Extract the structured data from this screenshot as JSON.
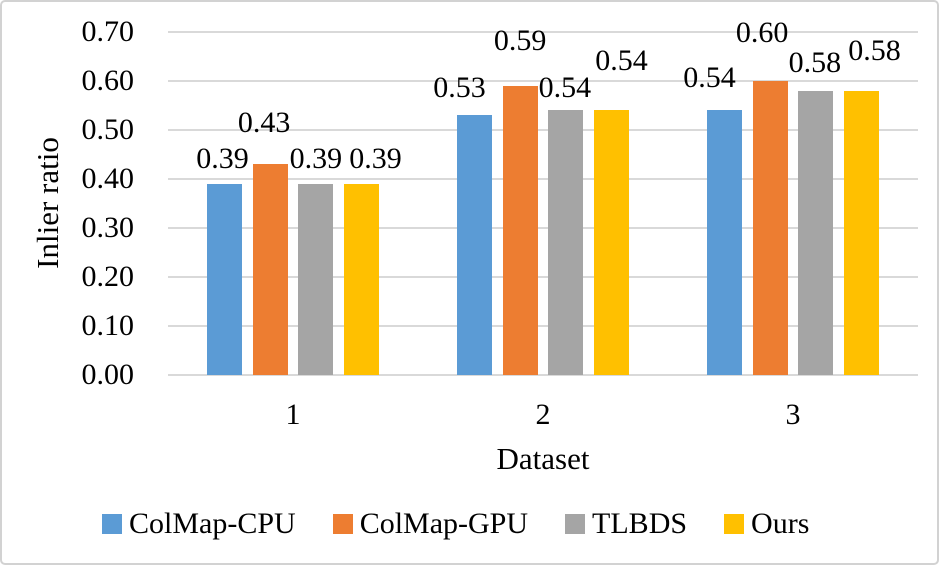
{
  "chart_data": {
    "type": "bar",
    "title": "",
    "xlabel": "Dataset",
    "ylabel": "Inlier ratio",
    "categories": [
      "1",
      "2",
      "3"
    ],
    "series": [
      {
        "name": "ColMap-CPU",
        "color": "#5B9BD5",
        "values": [
          0.39,
          0.53,
          0.54
        ]
      },
      {
        "name": "ColMap-GPU",
        "color": "#ED7D31",
        "values": [
          0.43,
          0.59,
          0.6
        ]
      },
      {
        "name": "TLBDS",
        "color": "#A5A5A5",
        "values": [
          0.39,
          0.54,
          0.58
        ]
      },
      {
        "name": "Ours",
        "color": "#FFC000",
        "values": [
          0.39,
          0.54,
          0.58
        ]
      }
    ],
    "data_labels": [
      [
        "0.39",
        "0.53",
        "0.54"
      ],
      [
        "0.43",
        "0.59",
        "0.60"
      ],
      [
        "0.39",
        "0.54",
        "0.58"
      ],
      [
        "0.39",
        "0.54",
        "0.58"
      ]
    ],
    "ylim": [
      0.0,
      0.7
    ],
    "ytick_step": 0.1,
    "yticks": [
      "0.00",
      "0.10",
      "0.20",
      "0.30",
      "0.40",
      "0.50",
      "0.60",
      "0.70"
    ],
    "grid": "horizontal",
    "legend_position": "bottom",
    "colors": {
      "gridline": "#D9D9D9",
      "text": "#000000",
      "frame_border": "#D2D2D2",
      "background": "#FFFFFF"
    }
  }
}
